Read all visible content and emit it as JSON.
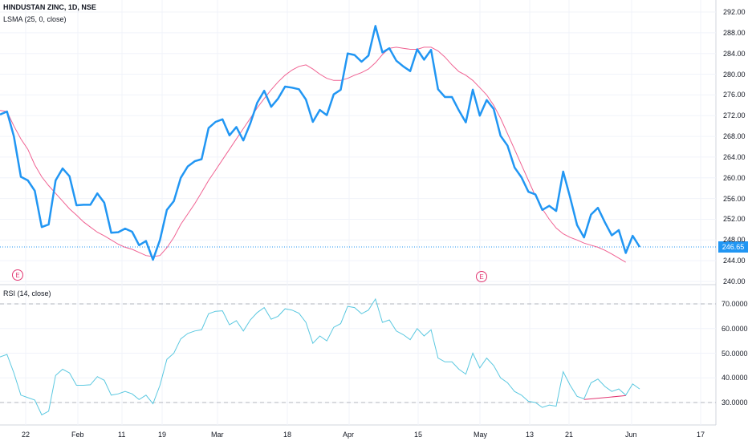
{
  "header": {
    "symbol_title": "HINDUSTAN ZINC, 1D, NSE",
    "lsma_label": "LSMA (25, 0, close)",
    "rsi_label": "RSI (14, close)"
  },
  "current_price": "246.65",
  "earnings_markers": [
    "E",
    "E"
  ],
  "colors": {
    "price": "#2196f3",
    "lsma": "#f06292",
    "rsi": "#5bc8e0",
    "trendline": "#e23672",
    "grid": "#f0f3fa",
    "axis_text": "#131722",
    "level_line": "#b2b5be"
  },
  "chart_data": [
    {
      "type": "line",
      "x_tick_labels": [
        "22",
        "Feb",
        "11",
        "19",
        "Mar",
        "18",
        "Apr",
        "15",
        "May",
        "13",
        "21",
        "Jun",
        "17"
      ],
      "y_tick_labels": [
        "240.00",
        "244.00",
        "248.00",
        "252.00",
        "256.00",
        "260.00",
        "264.00",
        "268.00",
        "272.00",
        "276.00",
        "280.00",
        "284.00",
        "288.00",
        "292.00"
      ],
      "ylim": [
        240,
        292
      ],
      "grid": true,
      "series": [
        {
          "name": "HINDUSTAN ZINC",
          "values": [
            272.2,
            272.8,
            268,
            260.2,
            259.5,
            257.5,
            250.5,
            251,
            259.5,
            261.8,
            260.3,
            254.7,
            254.8,
            254.8,
            257,
            255.2,
            249.4,
            249.5,
            250.2,
            249.6,
            247,
            247.8,
            244.2,
            248,
            253.8,
            255.5,
            260,
            262.2,
            263.2,
            263.6,
            269.6,
            270.8,
            271.3,
            268.2,
            269.8,
            267.2,
            270.5,
            274.5,
            276.8,
            273.7,
            275.3,
            277.6,
            277.4,
            277.1,
            275.1,
            270.8,
            273.1,
            272.1,
            276.1,
            277,
            284,
            283.7,
            282.4,
            283.6,
            289.3,
            284.2,
            285,
            282.6,
            281.5,
            280.6,
            284.8,
            282.8,
            284.7,
            277.1,
            275.6,
            275.6,
            273,
            270.7,
            277,
            272,
            275,
            273.3,
            268.1,
            266.2,
            262,
            260.1,
            257.3,
            256.8,
            253.8,
            254.6,
            253.6,
            261.2,
            256.2,
            250.9,
            248.5,
            252.9,
            254.2,
            251.4,
            248.9,
            249.9,
            245.5,
            248.8,
            246.65
          ]
        },
        {
          "name": "LSMA (25, 0, close)",
          "values": [
            273,
            272.8,
            270,
            267.5,
            265.5,
            262.5,
            260.2,
            258.5,
            257,
            255.5,
            254,
            252.8,
            251.5,
            250.5,
            249.5,
            248.8,
            248,
            247.2,
            246.6,
            246.2,
            245.6,
            245,
            244.8,
            245,
            246.5,
            248.5,
            251,
            253,
            255,
            257.2,
            259.5,
            261.5,
            263.5,
            265.5,
            267.5,
            269.5,
            271.5,
            273.5,
            275.3,
            277,
            278.5,
            279.8,
            280.8,
            281.5,
            281.8,
            281,
            280,
            279.2,
            278.8,
            278.8,
            279.2,
            279.8,
            280.3,
            281,
            282.2,
            283.8,
            285,
            285.2,
            285,
            284.8,
            284.8,
            285.2,
            285.2,
            284.5,
            283.3,
            281.8,
            280.5,
            279.8,
            278.8,
            277.4,
            276,
            274,
            271.5,
            268.5,
            265.5,
            262.5,
            259.5,
            256.5,
            254,
            252,
            250.3,
            249.2,
            248.5,
            248,
            247.4,
            247,
            246.6,
            246,
            245.3,
            244.5,
            243.7
          ]
        }
      ]
    },
    {
      "type": "line",
      "y_tick_labels": [
        "30.0000",
        "40.0000",
        "50.0000",
        "60.0000",
        "70.0000"
      ],
      "ylim": [
        24,
        76
      ],
      "levels": [
        70,
        30
      ],
      "series": [
        {
          "name": "RSI (14, close)",
          "values": [
            48.5,
            49.5,
            42,
            33,
            32,
            31,
            25,
            26.5,
            41,
            43.5,
            42,
            37,
            37,
            37.2,
            40.5,
            39,
            33,
            33.5,
            34.5,
            33.5,
            31.2,
            33,
            29.5,
            37,
            47.5,
            50,
            55.8,
            58,
            59,
            59.5,
            66,
            67,
            67.2,
            61.5,
            63.2,
            59,
            63.5,
            66.5,
            68.5,
            63.8,
            65,
            68,
            67.5,
            66.2,
            62.5,
            54,
            57,
            55,
            60.5,
            62,
            69,
            68.5,
            66,
            67.5,
            72,
            62.5,
            63.5,
            59,
            57.5,
            55.5,
            60,
            57,
            59.5,
            48,
            46.5,
            46.5,
            43.5,
            41.5,
            50,
            44,
            48,
            45,
            40,
            38,
            34.5,
            33,
            30.5,
            30,
            28,
            29,
            28.5,
            42.5,
            37,
            32.5,
            31.5,
            38,
            39.5,
            36.5,
            34.5,
            35.5,
            33,
            37.5,
            35.5
          ]
        }
      ]
    }
  ]
}
